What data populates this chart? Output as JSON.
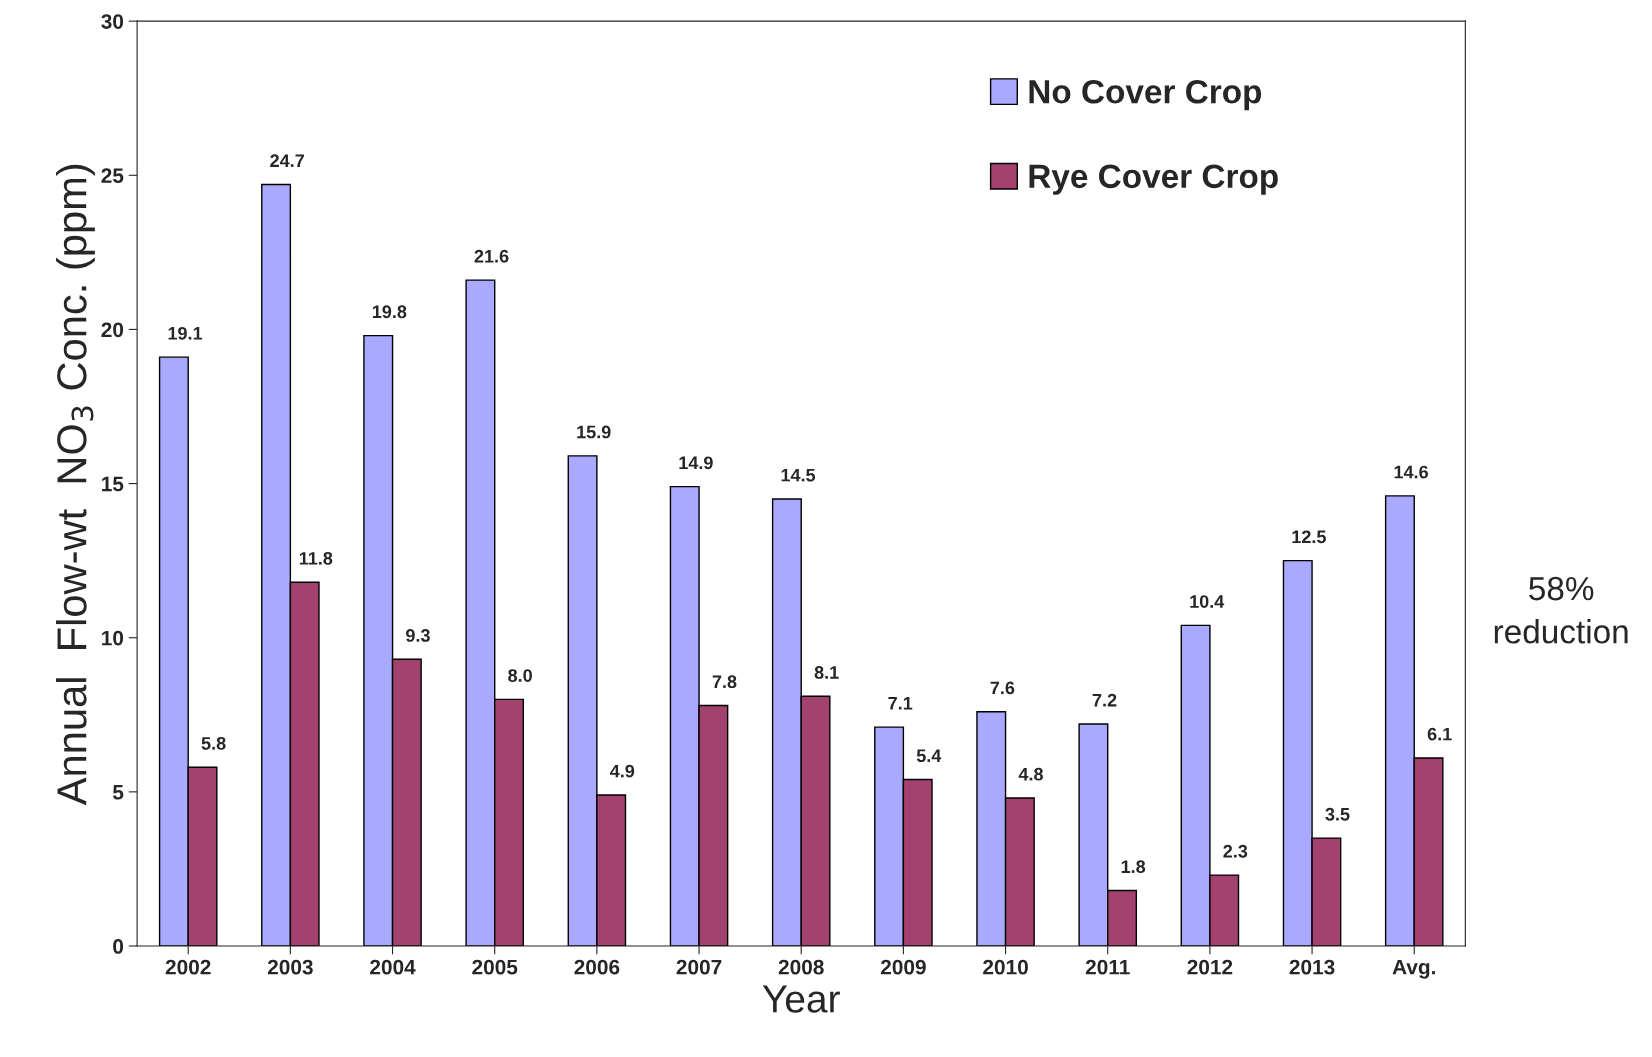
{
  "chart_data": {
    "type": "bar",
    "xlabel": "Year",
    "ylabel": "Annual  Flow-wt  NO$_{3}$ Conc. (ppm)",
    "categories": [
      "2002",
      "2003",
      "2004",
      "2005",
      "2006",
      "2007",
      "2008",
      "2009",
      "2010",
      "2011",
      "2012",
      "2013",
      "Avg."
    ],
    "series": [
      {
        "name": "No Cover Crop",
        "color": "#a9a9ff",
        "values": [
          19.1,
          24.7,
          19.8,
          21.6,
          15.9,
          14.9,
          14.5,
          7.1,
          7.6,
          7.2,
          10.4,
          12.5,
          14.6
        ],
        "value_labels": [
          "19.1",
          "24.7",
          "19.8",
          "21.6",
          "15.9",
          "14.9",
          "14.5",
          "7.1",
          "7.6",
          "7.2",
          "10.4",
          "12.5",
          "14.6"
        ]
      },
      {
        "name": "Rye Cover Crop",
        "color": "#a3416f",
        "values": [
          5.8,
          11.8,
          9.3,
          8.0,
          4.9,
          7.8,
          8.1,
          5.4,
          4.8,
          1.8,
          2.3,
          3.5,
          6.1
        ],
        "value_labels": [
          "5.8",
          "11.8",
          "9.3",
          "8.0",
          "4.9",
          "7.8",
          "8.1",
          "5.4",
          "4.8",
          "1.8",
          "2.3",
          "3.5",
          "6.1"
        ]
      }
    ],
    "ylim": [
      0,
      30
    ],
    "yticks": [
      0,
      5,
      10,
      15,
      20,
      25,
      30
    ],
    "grid": false,
    "legend": "top right",
    "annotations": [
      "58%\nreduction"
    ]
  }
}
